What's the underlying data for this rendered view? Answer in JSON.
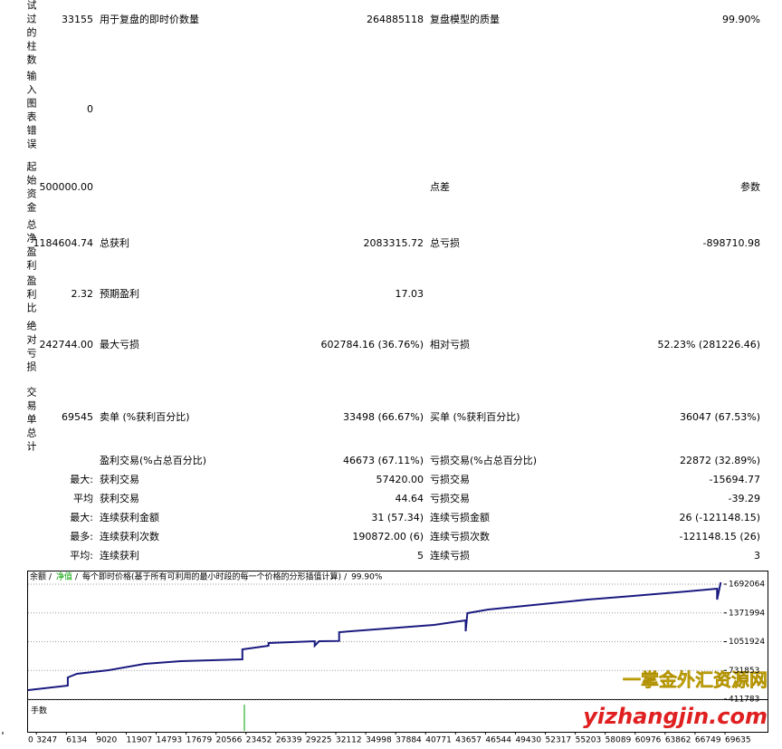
{
  "report": {
    "rows": [
      {
        "label": "试过的柱数",
        "value": "33155",
        "c2": "用于复盘的即时价数量",
        "v2": "264885118",
        "c3": "复盘模型的质量",
        "v3": "99.90%"
      },
      {
        "label": "输入图表错误",
        "value": "0"
      },
      {
        "label": "起始资金",
        "value": "500000.00",
        "c3": "点差",
        "v3": "参数"
      },
      {
        "label": "总净盈利",
        "value": "1184604.74",
        "c2": "总获利",
        "v2": "2083315.72",
        "c3": "总亏损",
        "v3": "-898710.98"
      },
      {
        "label": "盈利比",
        "value": "2.32",
        "c2": "预期盈利",
        "v2": "17.03"
      },
      {
        "label": "绝对亏损",
        "value": "242744.00",
        "c2": "最大亏损",
        "v2": "602784.16 (36.76%)",
        "c3": "相对亏损",
        "v3": "52.23% (281226.46)"
      },
      {
        "label": "交易单总计",
        "value": "69545",
        "c2": "卖单 (%获利百分比)",
        "v2": "33498 (66.67%)",
        "c3": "买单 (%获利百分比)",
        "v3": "36047 (67.53%)"
      },
      {
        "c2": "盈利交易(%占总百分比)",
        "v2": "46673 (67.11%)",
        "c3": "亏损交易(%占总百分比)",
        "v3": "22872 (32.89%)"
      },
      {
        "value": "最大:",
        "c2": "获利交易",
        "v2": "57420.00",
        "c3": "亏损交易",
        "v3": "-15694.77"
      },
      {
        "value": "平均",
        "c2": "获利交易",
        "v2": "44.64",
        "c3": "亏损交易",
        "v3": "-39.29"
      },
      {
        "value": "最大:",
        "c2": "连续获利金额",
        "v2": "31 (57.34)",
        "c3": "连续亏损金额",
        "v3": "26 (-121148.15)"
      },
      {
        "value": "最多:",
        "c2": "连续获利次数",
        "v2": "190872.00 (6)",
        "c3": "连续亏损次数",
        "v3": "-121148.15 (26)"
      },
      {
        "value": "平均:",
        "c2": "连续获利",
        "v2": "5",
        "c3": "连续亏损",
        "v3": "3"
      }
    ]
  },
  "chart_data": {
    "type": "line",
    "header": [
      "余额",
      "净值",
      "每个即时价格(基于所有可利用的最小时段的每一个价格的分形插值计算)",
      "99.90%"
    ],
    "lower_panel_label": "手数",
    "color": "#1a1a80",
    "x": [
      2441,
      6277,
      6277,
      7149,
      10200,
      13687,
      17175,
      23103,
      23103,
      25631,
      25631,
      30077,
      30077,
      30500,
      32431,
      32431,
      41585,
      44636,
      44636,
      44800,
      46816,
      51176,
      56406,
      60765,
      65996,
      68873,
      68873,
      69221
    ],
    "values": [
      512593,
      562998,
      653727,
      694051,
      734375,
      804942,
      835185,
      855347,
      966238,
      1006562,
      1036805,
      1056967,
      1006562,
      1056967,
      1060000,
      1157777,
      1238425,
      1288830,
      1167858,
      1369478,
      1409802,
      1460207,
      1520693,
      1561017,
      1611422,
      1641665,
      1520693,
      1712232
    ],
    "xlim": [
      0,
      69635
    ],
    "xticks": [
      0,
      3247,
      6134,
      9020,
      11907,
      14793,
      17679,
      20566,
      23452,
      26339,
      29225,
      32112,
      34998,
      37884,
      40771,
      43657,
      46544,
      49430,
      52317,
      55203,
      58089,
      60976,
      63862,
      66749,
      69635
    ],
    "ylim": [
      411783,
      1843279
    ],
    "yticks": [
      1692064,
      1371994,
      1051924,
      731853,
      411783
    ],
    "grid": true
  },
  "watermark": {
    "line1": "一掌金外汇资源网",
    "line2": "yizhangjin.com"
  }
}
